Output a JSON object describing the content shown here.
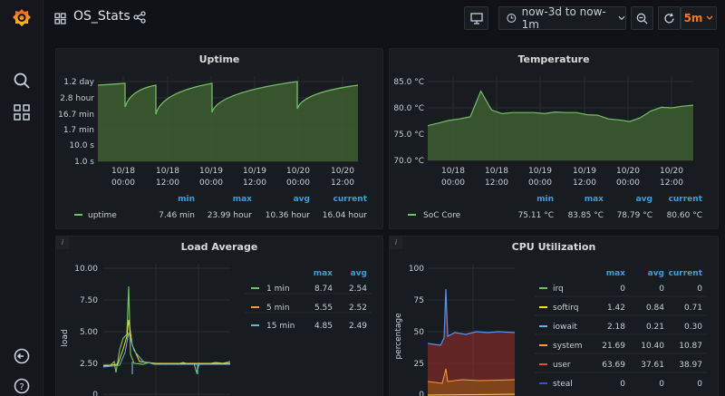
{
  "header": {
    "title": "OS_Stats",
    "time_range": "now-3d to now-1m",
    "refresh_interval": "5m"
  },
  "colors": {
    "accent": "#33a2e5",
    "green": "#73bf69",
    "yellow": "#fade2a",
    "orange": "#ff9830",
    "blue": "#5794f2",
    "refresh": "#ff7a1a"
  },
  "panels": {
    "uptime": {
      "title": "Uptime",
      "legend": {
        "headers": [
          "min",
          "max",
          "avg",
          "current"
        ],
        "series": [
          {
            "name": "uptime",
            "min": "7.46 min",
            "max": "23.99 hour",
            "avg": "10.36 hour",
            "current": "16.04 hour"
          }
        ]
      }
    },
    "temperature": {
      "title": "Temperature",
      "legend": {
        "headers": [
          "min",
          "max",
          "avg",
          "current"
        ],
        "series": [
          {
            "name": "SoC Core",
            "min": "75.11 °C",
            "max": "83.85 °C",
            "avg": "78.79 °C",
            "current": "80.60 °C"
          }
        ]
      }
    },
    "load": {
      "title": "Load Average",
      "info": "i",
      "legend": {
        "headers": [
          "max",
          "avg"
        ],
        "series": [
          {
            "name": "1 min",
            "max": "8.74",
            "avg": "2.54"
          },
          {
            "name": "5 min",
            "max": "5.55",
            "avg": "2.52"
          },
          {
            "name": "15 min",
            "max": "4.85",
            "avg": "2.49"
          }
        ]
      }
    },
    "cpu": {
      "title": "CPU Utilization",
      "info": "i",
      "legend": {
        "headers": [
          "max",
          "avg",
          "current"
        ],
        "series": [
          {
            "name": "irq",
            "max": "0",
            "avg": "0",
            "current": "0"
          },
          {
            "name": "softirq",
            "max": "1.42",
            "avg": "0.84",
            "current": "0.71"
          },
          {
            "name": "iowait",
            "max": "2.18",
            "avg": "0.21",
            "current": "0.30"
          },
          {
            "name": "system",
            "max": "21.69",
            "avg": "10.40",
            "current": "10.87"
          },
          {
            "name": "user",
            "max": "63.69",
            "avg": "37.61",
            "current": "38.97"
          },
          {
            "name": "steal",
            "max": "0",
            "avg": "0",
            "current": "0"
          }
        ]
      }
    }
  },
  "chart_data": [
    {
      "type": "line",
      "title": "Uptime",
      "x_ticks": [
        "10/18 00:00",
        "10/18 12:00",
        "10/19 00:00",
        "10/19 12:00",
        "10/20 00:00",
        "10/20 12:00"
      ],
      "y_ticks": [
        "1.2 day",
        "2.8 hour",
        "16.7 min",
        "1.7 min",
        "10.0 s",
        "1.0 s"
      ],
      "y_scale": "log",
      "series": [
        {
          "name": "uptime",
          "color": "#73bf69",
          "shape": "sawtooth",
          "resets_at_x": [
            0.21,
            0.33,
            0.55,
            0.82
          ],
          "plateau_y": 0.92,
          "reset_y": 0.62
        }
      ]
    },
    {
      "type": "line",
      "title": "Temperature",
      "x_ticks": [
        "10/18 00:00",
        "10/18 12:00",
        "10/19 00:00",
        "10/19 12:00",
        "10/20 00:00",
        "10/20 12:00"
      ],
      "y_ticks": [
        "85.0 °C",
        "80.0 °C",
        "75.0 °C",
        "70.0 °C"
      ],
      "ylim": [
        70,
        85
      ],
      "series": [
        {
          "name": "SoC Core",
          "color": "#73bf69",
          "values": [
            76.5,
            77.2,
            77.5,
            78.0,
            78.2,
            83.3,
            79.5,
            79.0,
            79.0,
            79.2,
            79.0,
            79.0,
            79.1,
            79.2,
            79.0,
            78.8,
            78.5,
            78.0,
            77.6,
            77.5,
            78.0,
            79.5,
            80.0,
            80.1,
            80.2,
            80.6
          ]
        }
      ]
    },
    {
      "type": "line",
      "title": "Load Average",
      "ylabel": "load",
      "y_ticks": [
        "10.00",
        "7.50",
        "5.00",
        "2.50",
        "0"
      ],
      "ylim": [
        0,
        10
      ],
      "series": [
        {
          "name": "1 min",
          "color": "#73bf69",
          "peak": 8.74,
          "baseline": 2.5
        },
        {
          "name": "5 min",
          "color": "#fade2a",
          "peak": 5.55,
          "baseline": 2.5
        },
        {
          "name": "15 min",
          "color": "#5ab8db",
          "peak": 4.85,
          "baseline": 2.5
        }
      ]
    },
    {
      "type": "area",
      "title": "CPU Utilization",
      "ylabel": "percentage",
      "y_ticks": [
        "100",
        "75",
        "50",
        "25",
        "0"
      ],
      "ylim": [
        0,
        100
      ],
      "stacked": true,
      "series": [
        {
          "name": "user",
          "color": "#e24d42",
          "level": 38.97
        },
        {
          "name": "system",
          "color": "#ff9830",
          "level": 10.87
        },
        {
          "name": "softirq",
          "color": "#fade2a",
          "level": 0.71
        },
        {
          "name": "irq",
          "color": "#73bf69",
          "level": 0
        },
        {
          "name": "iowait",
          "color": "#5ab8db",
          "level": 0.3
        },
        {
          "name": "steal",
          "color": "#1f60c4",
          "level": 0
        }
      ]
    }
  ]
}
